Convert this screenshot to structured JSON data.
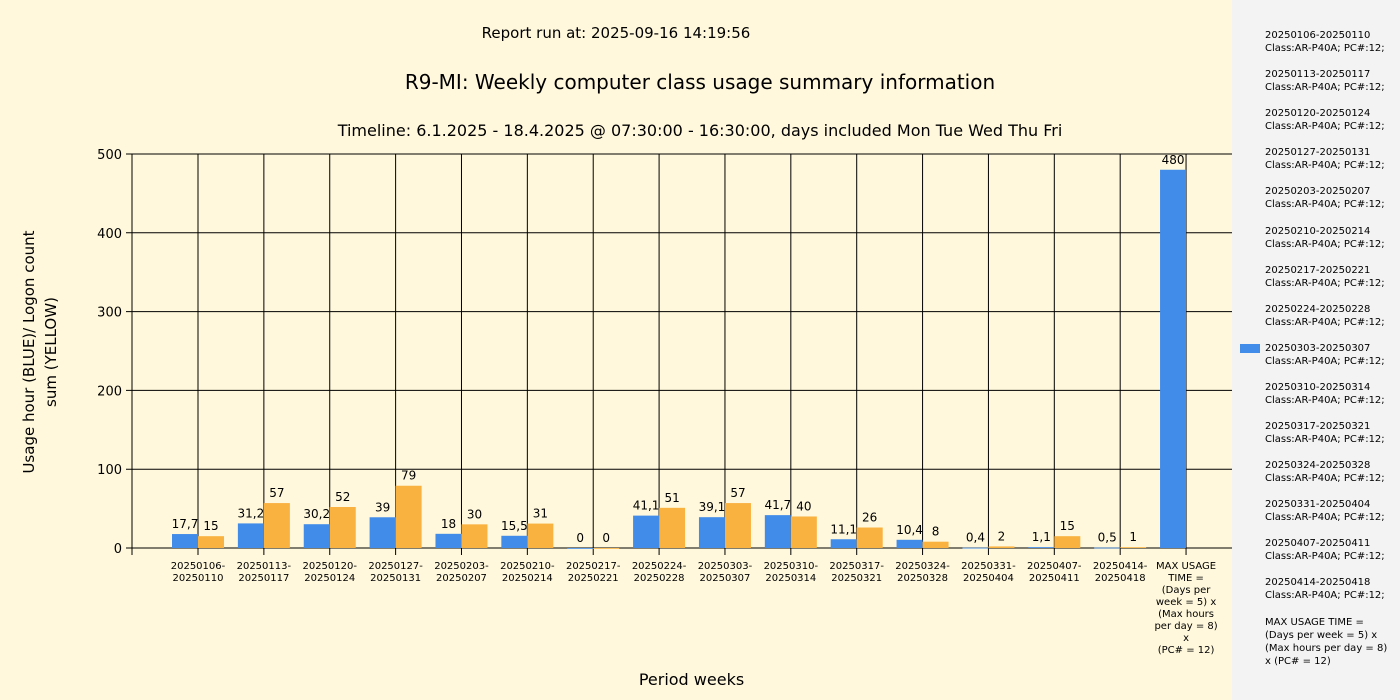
{
  "header": {
    "run_at": "Report run at: 2025-09-16 14:19:56",
    "title": "R9-MI: Weekly computer class usage summary information",
    "timeline": "Timeline:  6.1.2025  - 18.4.2025  @  07:30:00 -  16:30:00, days included Mon Tue Wed Thu Fri"
  },
  "chart_data": {
    "type": "bar",
    "title": "R9-MI: Weekly computer class usage summary information",
    "xlabel": "Period weeks",
    "ylabel": "Usage hour (BLUE)/ Logon count sum (YELLOW)",
    "ylim": [
      0,
      500
    ],
    "yticks": [
      "0",
      "100",
      "200",
      "300",
      "400",
      "500"
    ],
    "grid": true,
    "legend_position": "right",
    "categories": [
      "20250106-20250110",
      "20250113-20250117",
      "20250120-20250124",
      "20250127-20250131",
      "20250203-20250207",
      "20250210-20250214",
      "20250217-20250221",
      "20250224-20250228",
      "20250303-20250307",
      "20250310-20250314",
      "20250317-20250321",
      "20250324-20250328",
      "20250331-20250404",
      "20250407-20250411",
      "20250414-20250418",
      "MAX USAGE TIME = (Days per week = 5) x (Max hours per day = 8) x (PC# = 12)"
    ],
    "series": [
      {
        "name": "Usage hour",
        "color": "#418be9",
        "values": [
          17.7,
          31.2,
          30.2,
          39,
          18,
          15.5,
          0,
          41.1,
          39.1,
          41.7,
          11.1,
          10.4,
          0.4,
          1.1,
          0.5,
          480
        ],
        "labels": [
          "17,7",
          "31,2",
          "30,2",
          "39",
          "18",
          "15,5",
          "0",
          "41,1",
          "39,1",
          "41,7",
          "11,1",
          "10,4",
          "0,4",
          "1,1",
          "0,5",
          "480"
        ]
      },
      {
        "name": "Logon count sum",
        "color": "#f9b13f",
        "values": [
          15,
          57,
          52,
          79,
          30,
          31,
          0,
          51,
          57,
          40,
          26,
          8,
          2,
          15,
          1,
          null
        ],
        "labels": [
          "15",
          "57",
          "52",
          "79",
          "30",
          "31",
          "0",
          "51",
          "57",
          "40",
          "26",
          "8",
          "2",
          "15",
          "1",
          null
        ]
      }
    ]
  },
  "legend": {
    "items": [
      {
        "period": "20250106-20250110",
        "class": "Class:AR-P40A; PC#:12;"
      },
      {
        "period": "20250113-20250117",
        "class": "Class:AR-P40A; PC#:12;"
      },
      {
        "period": "20250120-20250124",
        "class": "Class:AR-P40A; PC#:12;"
      },
      {
        "period": "20250127-20250131",
        "class": "Class:AR-P40A; PC#:12;"
      },
      {
        "period": "20250203-20250207",
        "class": "Class:AR-P40A; PC#:12;"
      },
      {
        "period": "20250210-20250214",
        "class": "Class:AR-P40A; PC#:12;"
      },
      {
        "period": "20250217-20250221",
        "class": "Class:AR-P40A; PC#:12;"
      },
      {
        "period": "20250224-20250228",
        "class": "Class:AR-P40A; PC#:12;"
      },
      {
        "period": "20250303-20250307",
        "class": "Class:AR-P40A; PC#:12;",
        "swatch": true
      },
      {
        "period": "20250310-20250314",
        "class": "Class:AR-P40A; PC#:12;"
      },
      {
        "period": "20250317-20250321",
        "class": "Class:AR-P40A; PC#:12;"
      },
      {
        "period": "20250324-20250328",
        "class": "Class:AR-P40A; PC#:12;"
      },
      {
        "period": "20250331-20250404",
        "class": "Class:AR-P40A; PC#:12;"
      },
      {
        "period": "20250407-20250411",
        "class": "Class:AR-P40A; PC#:12;"
      },
      {
        "period": "20250414-20250418",
        "class": "Class:AR-P40A; PC#:12;"
      }
    ],
    "max_note": "MAX USAGE TIME = (Days per week = 5) x (Max hours per day = 8) x (PC# = 12)"
  }
}
